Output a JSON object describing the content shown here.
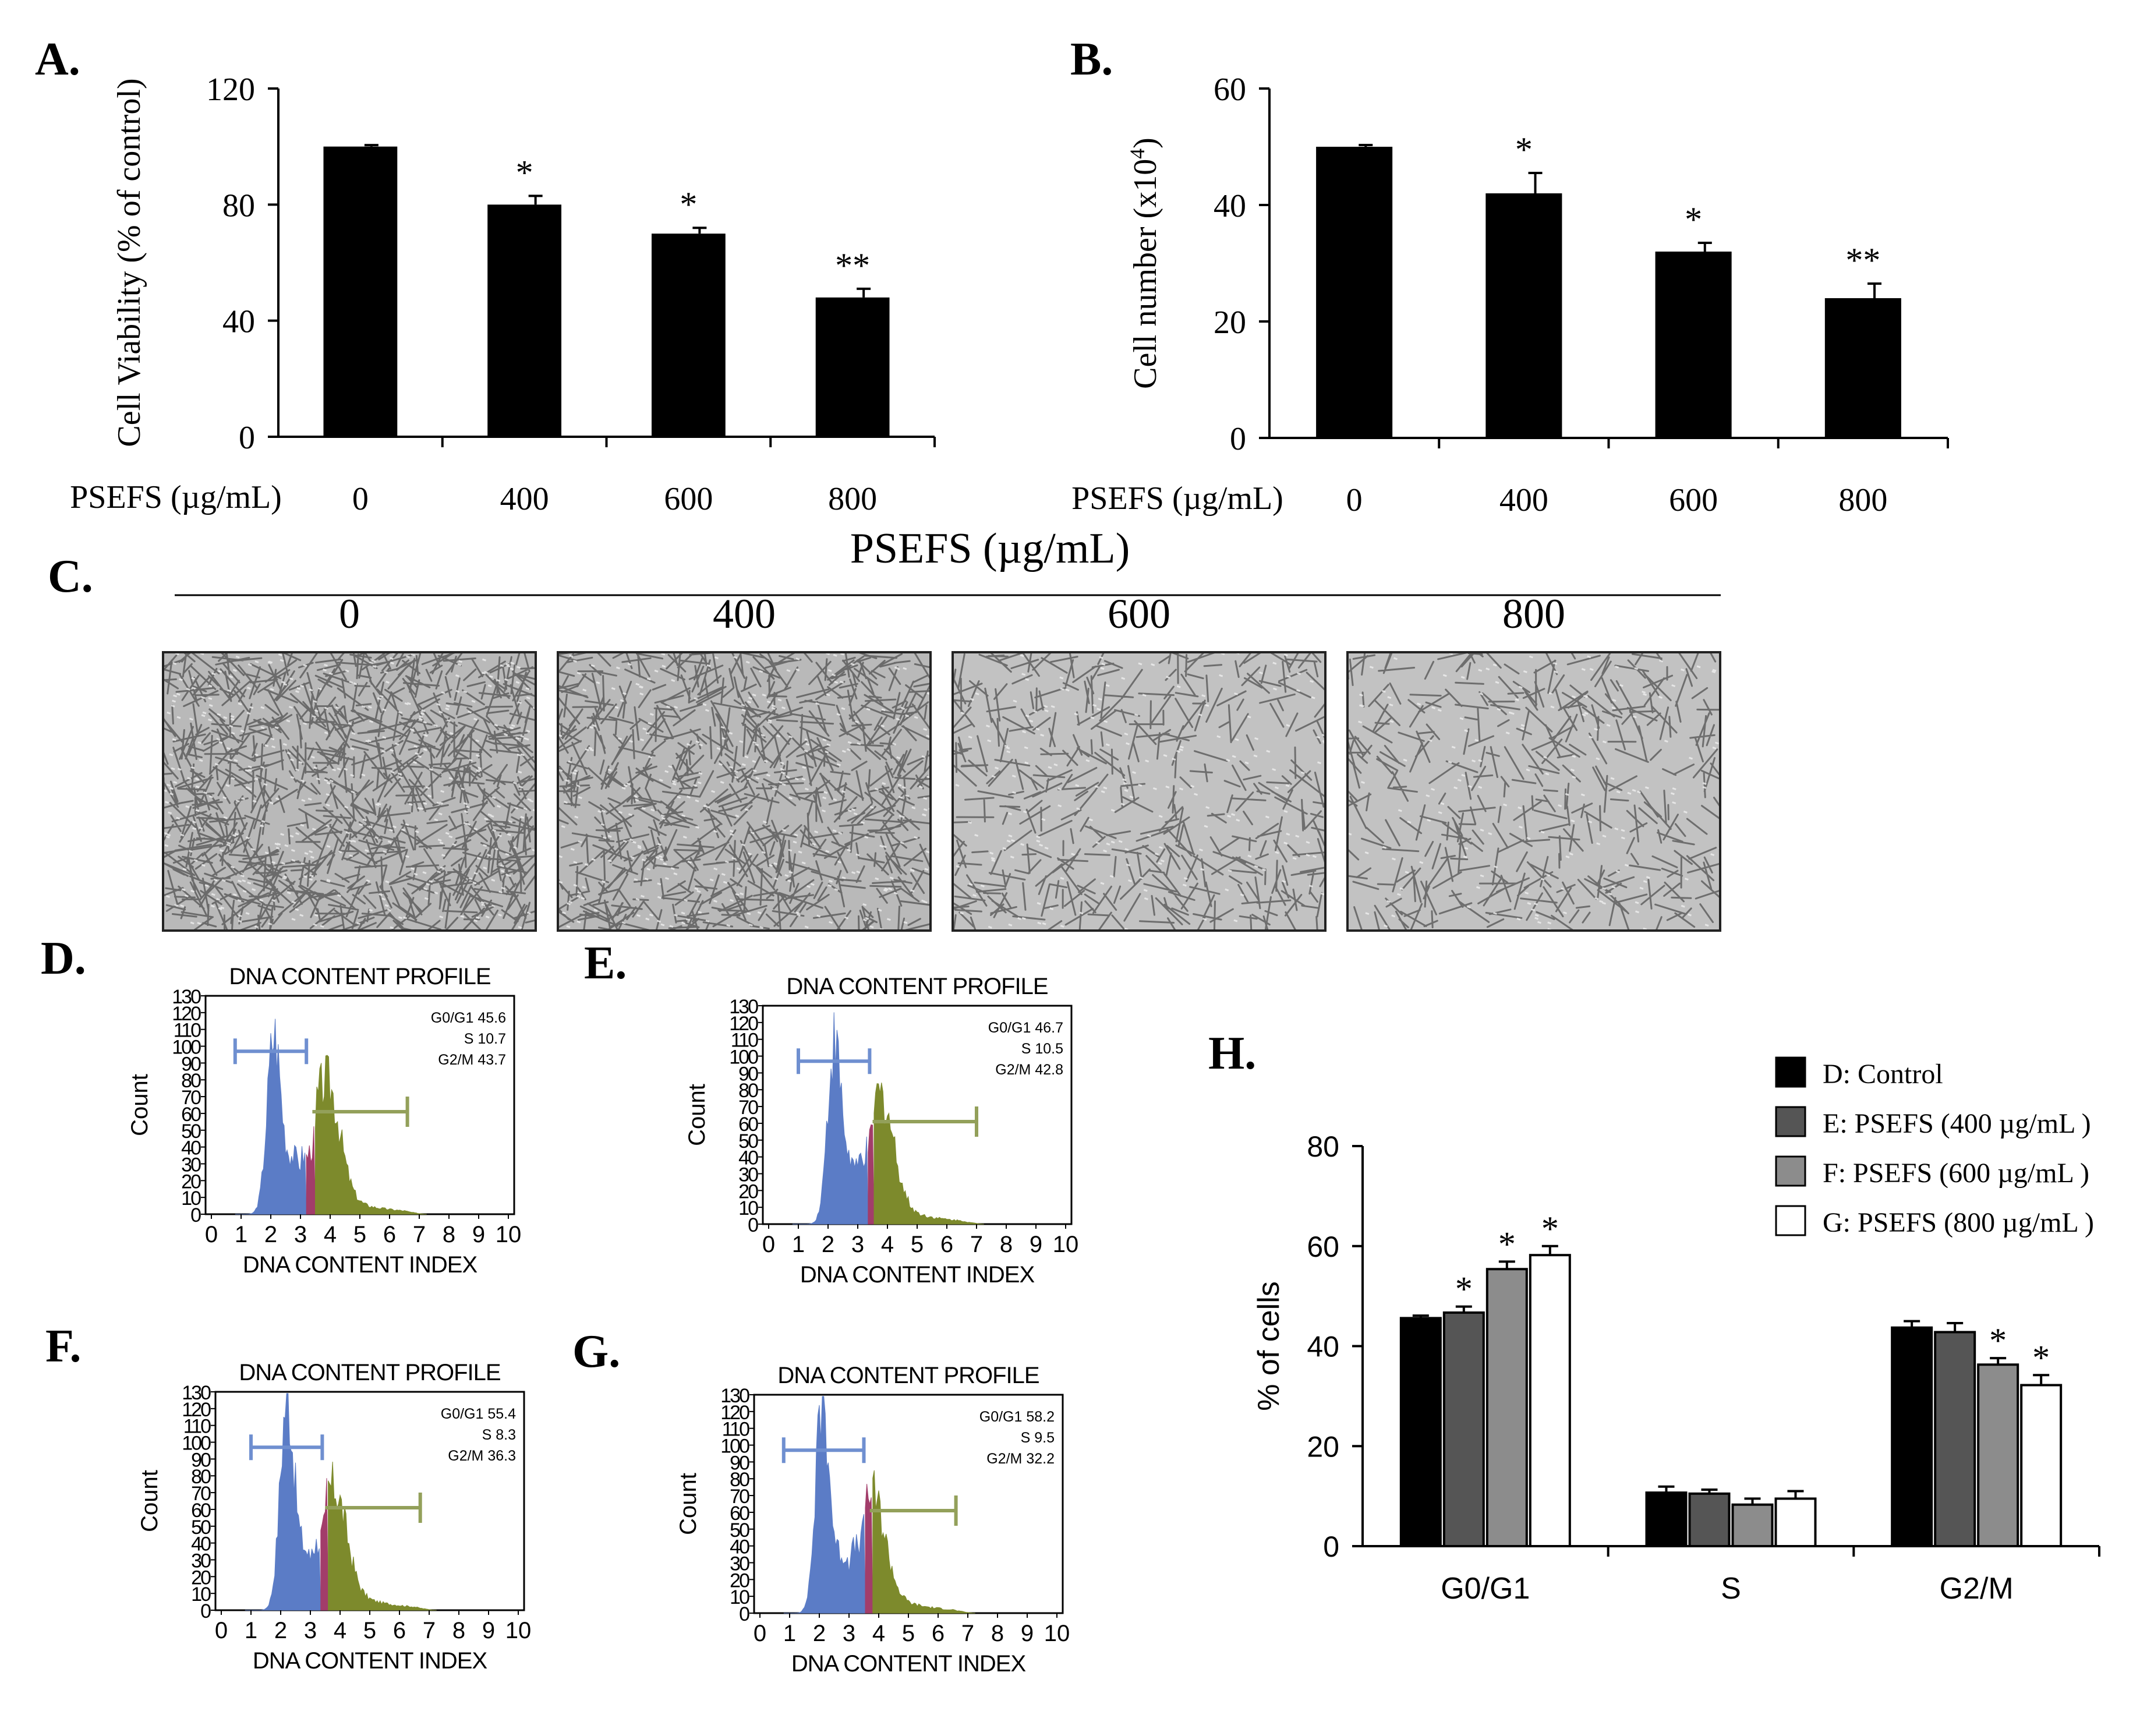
{
  "panels": {
    "A": {
      "letter": "A.",
      "chart_data": {
        "type": "bar",
        "categories": [
          "0",
          "400",
          "600",
          "800"
        ],
        "values": [
          100,
          80,
          70,
          48
        ],
        "errors": [
          0.5,
          3,
          2,
          3
        ],
        "significance": [
          "",
          "*",
          "*",
          "**"
        ],
        "ylabel": "Cell Viability (% of control)",
        "xlabel": "PSEFS (µg/mL)",
        "ylim": [
          0,
          120
        ],
        "yticks": [
          0,
          40,
          80,
          120
        ],
        "ytick_labels": [
          "0",
          "40",
          "80",
          "120"
        ],
        "bar_color": "#000000"
      }
    },
    "B": {
      "letter": "B.",
      "chart_data": {
        "type": "bar",
        "categories": [
          "0",
          "400",
          "600",
          "800"
        ],
        "values": [
          50,
          42,
          32,
          24
        ],
        "errors": [
          0.3,
          3.5,
          1.5,
          2.5
        ],
        "significance": [
          "",
          "*",
          "*",
          "**"
        ],
        "ylabel_main": "Cell number (x10",
        "ylabel_sup": "4",
        "ylabel_end": ")",
        "xlabel": "PSEFS (µg/mL)",
        "ylim": [
          0,
          60
        ],
        "yticks": [
          0,
          20,
          40,
          60
        ],
        "ytick_labels": [
          "0",
          "20",
          "40",
          "60"
        ],
        "bar_color": "#000000"
      }
    },
    "shared_xlabel": "PSEFS (µg/mL)",
    "C": {
      "letter": "C.",
      "doses": [
        "0",
        "400",
        "600",
        "800"
      ],
      "densities": [
        1.0,
        0.8,
        0.45,
        0.4
      ]
    },
    "flow": [
      {
        "letter": "D.",
        "title": "DNA CONTENT PROFILE",
        "xlabel": "DNA CONTENT INDEX",
        "ylabel": "Count",
        "stats": [
          "G0/G1 45.6",
          "S 10.7",
          "G2/M 43.7"
        ],
        "peak": 108,
        "g1_pos": 2.1,
        "g2_pos": 3.9,
        "g2_peak": 70,
        "g1_gate": [
          0.8,
          3.2
        ],
        "s_band": [
          3.15,
          3.45
        ],
        "g2_gate": [
          3.4,
          6.6
        ],
        "yticks": [
          "0",
          "10",
          "20",
          "30",
          "40",
          "50",
          "60",
          "70",
          "80",
          "90",
          "100",
          "110",
          "120",
          "130"
        ],
        "xticks": [
          "0",
          "1",
          "2",
          "3",
          "4",
          "5",
          "6",
          "7",
          "8",
          "9",
          "10"
        ]
      },
      {
        "letter": "E.",
        "title": "DNA CONTENT PROFILE",
        "xlabel": "DNA CONTENT INDEX",
        "ylabel": "Count",
        "stats": [
          "G0/G1 46.7",
          "S 10.5",
          "G2/M 42.8"
        ],
        "peak": 105,
        "g1_pos": 2.2,
        "g2_pos": 3.8,
        "g2_peak": 65,
        "g1_gate": [
          1.0,
          3.4
        ],
        "s_band": [
          3.3,
          3.5
        ],
        "g2_gate": [
          3.5,
          7.0
        ],
        "yticks": [
          "0",
          "10",
          "20",
          "30",
          "40",
          "50",
          "60",
          "70",
          "80",
          "90",
          "100",
          "110",
          "120",
          "130"
        ],
        "xticks": [
          "0",
          "1",
          "2",
          "3",
          "4",
          "5",
          "6",
          "7",
          "8",
          "9",
          "10"
        ]
      },
      {
        "letter": "F.",
        "title": "DNA CONTENT PROFILE",
        "xlabel": "DNA CONTENT INDEX",
        "ylabel": "Count",
        "stats": [
          "G0/G1 55.4",
          "S 8.3",
          "G2/M 36.3"
        ],
        "peak": 125,
        "g1_pos": 2.2,
        "g2_pos": 3.8,
        "g2_peak": 62,
        "g1_gate": [
          1.0,
          3.4
        ],
        "s_band": [
          3.3,
          3.55
        ],
        "g2_gate": [
          3.5,
          6.7
        ],
        "yticks": [
          "0",
          "10",
          "20",
          "30",
          "40",
          "50",
          "60",
          "70",
          "80",
          "90",
          "100",
          "110",
          "120",
          "130"
        ],
        "xticks": [
          "0",
          "1",
          "2",
          "3",
          "4",
          "5",
          "6",
          "7",
          "8",
          "9",
          "10"
        ]
      },
      {
        "letter": "G.",
        "title": "DNA CONTENT PROFILE",
        "xlabel": "DNA CONTENT INDEX",
        "ylabel": "Count",
        "stats": [
          "G0/G1 58.2",
          "S 9.5",
          "G2/M 32.2"
        ],
        "peak": 128,
        "g1_pos": 2.1,
        "g2_pos": 3.8,
        "g2_peak": 60,
        "g1_gate": [
          0.8,
          3.5
        ],
        "s_band": [
          3.5,
          3.75
        ],
        "g2_gate": [
          3.7,
          6.6
        ],
        "yticks": [
          "0",
          "10",
          "20",
          "30",
          "40",
          "50",
          "60",
          "70",
          "80",
          "90",
          "100",
          "110",
          "120",
          "130"
        ],
        "xticks": [
          "0",
          "1",
          "2",
          "3",
          "4",
          "5",
          "6",
          "7",
          "8",
          "9",
          "10"
        ]
      }
    ],
    "flow_colors": {
      "g1": "#5b7cc6",
      "s": "#a23d6a",
      "g2": "#7d8a2c",
      "g1_gate": "#6f8fd0",
      "g2_gate": "#93a05a",
      "axis": "#000000",
      "panel_bg": "#ffffff"
    },
    "H": {
      "letter": "H.",
      "chart_data": {
        "type": "bar",
        "categories": [
          "G0/G1",
          "S",
          "G2/M"
        ],
        "series": [
          {
            "name": "D: Control",
            "values": [
              45.6,
              10.7,
              43.7
            ],
            "errors": [
              0.5,
              1.2,
              1.3
            ],
            "sig": [
              "",
              "",
              ""
            ],
            "color": "#000000"
          },
          {
            "name": "E: PSEFS (400 µg/mL )",
            "values": [
              46.7,
              10.5,
              42.8
            ],
            "errors": [
              1.2,
              0.8,
              1.8
            ],
            "sig": [
              "*",
              "",
              ""
            ],
            "color": "#555555"
          },
          {
            "name": "F: PSEFS (600 µg/mL )",
            "values": [
              55.4,
              8.3,
              36.3
            ],
            "errors": [
              1.5,
              1.2,
              1.3
            ],
            "sig": [
              "*",
              "",
              "*"
            ],
            "color": "#8c8c8c"
          },
          {
            "name": "G: PSEFS (800 µg/mL )",
            "values": [
              58.2,
              9.5,
              32.2
            ],
            "errors": [
              1.8,
              1.5,
              2.0
            ],
            "sig": [
              "*",
              "",
              "*"
            ],
            "color": "#ffffff"
          }
        ],
        "ylabel": "% of cells",
        "ylim": [
          0,
          80
        ],
        "yticks": [
          0,
          20,
          40,
          60,
          80
        ],
        "ytick_labels": [
          "0",
          "20",
          "40",
          "60",
          "80"
        ],
        "legend": "top-right"
      }
    }
  }
}
